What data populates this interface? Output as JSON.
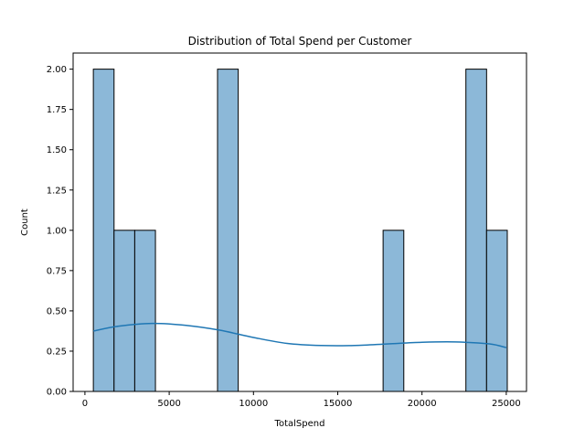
{
  "chart_data": {
    "type": "bar",
    "title": "Distribution of Total Spend per Customer",
    "xlabel": "TotalSpend",
    "ylabel": "Count",
    "xlim": [
      -700,
      26200
    ],
    "ylim": [
      0,
      2.1
    ],
    "xticks": [
      0,
      5000,
      10000,
      15000,
      20000,
      25000
    ],
    "xtick_labels": [
      "0",
      "5000",
      "10000",
      "15000",
      "20000",
      "25000"
    ],
    "yticks": [
      0,
      0.25,
      0.5,
      0.75,
      1.0,
      1.25,
      1.5,
      1.75,
      2.0
    ],
    "ytick_labels": [
      "0.00",
      "0.25",
      "0.50",
      "0.75",
      "1.00",
      "1.25",
      "1.50",
      "1.75",
      "2.00"
    ],
    "bin_width": 1228,
    "bins": [
      {
        "x0": 500,
        "count": 2
      },
      {
        "x0": 1728,
        "count": 1
      },
      {
        "x0": 2956,
        "count": 1
      },
      {
        "x0": 7868,
        "count": 2
      },
      {
        "x0": 17692,
        "count": 1
      },
      {
        "x0": 22604,
        "count": 2
      },
      {
        "x0": 23832,
        "count": 1
      }
    ],
    "kde": {
      "x": [
        500,
        2000,
        4000,
        6000,
        8000,
        10000,
        12000,
        14000,
        16000,
        18000,
        20000,
        22000,
        24000,
        25000
      ],
      "y": [
        0.375,
        0.405,
        0.422,
        0.41,
        0.38,
        0.335,
        0.298,
        0.285,
        0.285,
        0.295,
        0.305,
        0.307,
        0.295,
        0.272
      ]
    },
    "colors": {
      "bar_fill": "#8cb8d8",
      "bar_edge": "#000000",
      "kde_line": "#1f77b4"
    },
    "grid": false,
    "legend": "none"
  }
}
